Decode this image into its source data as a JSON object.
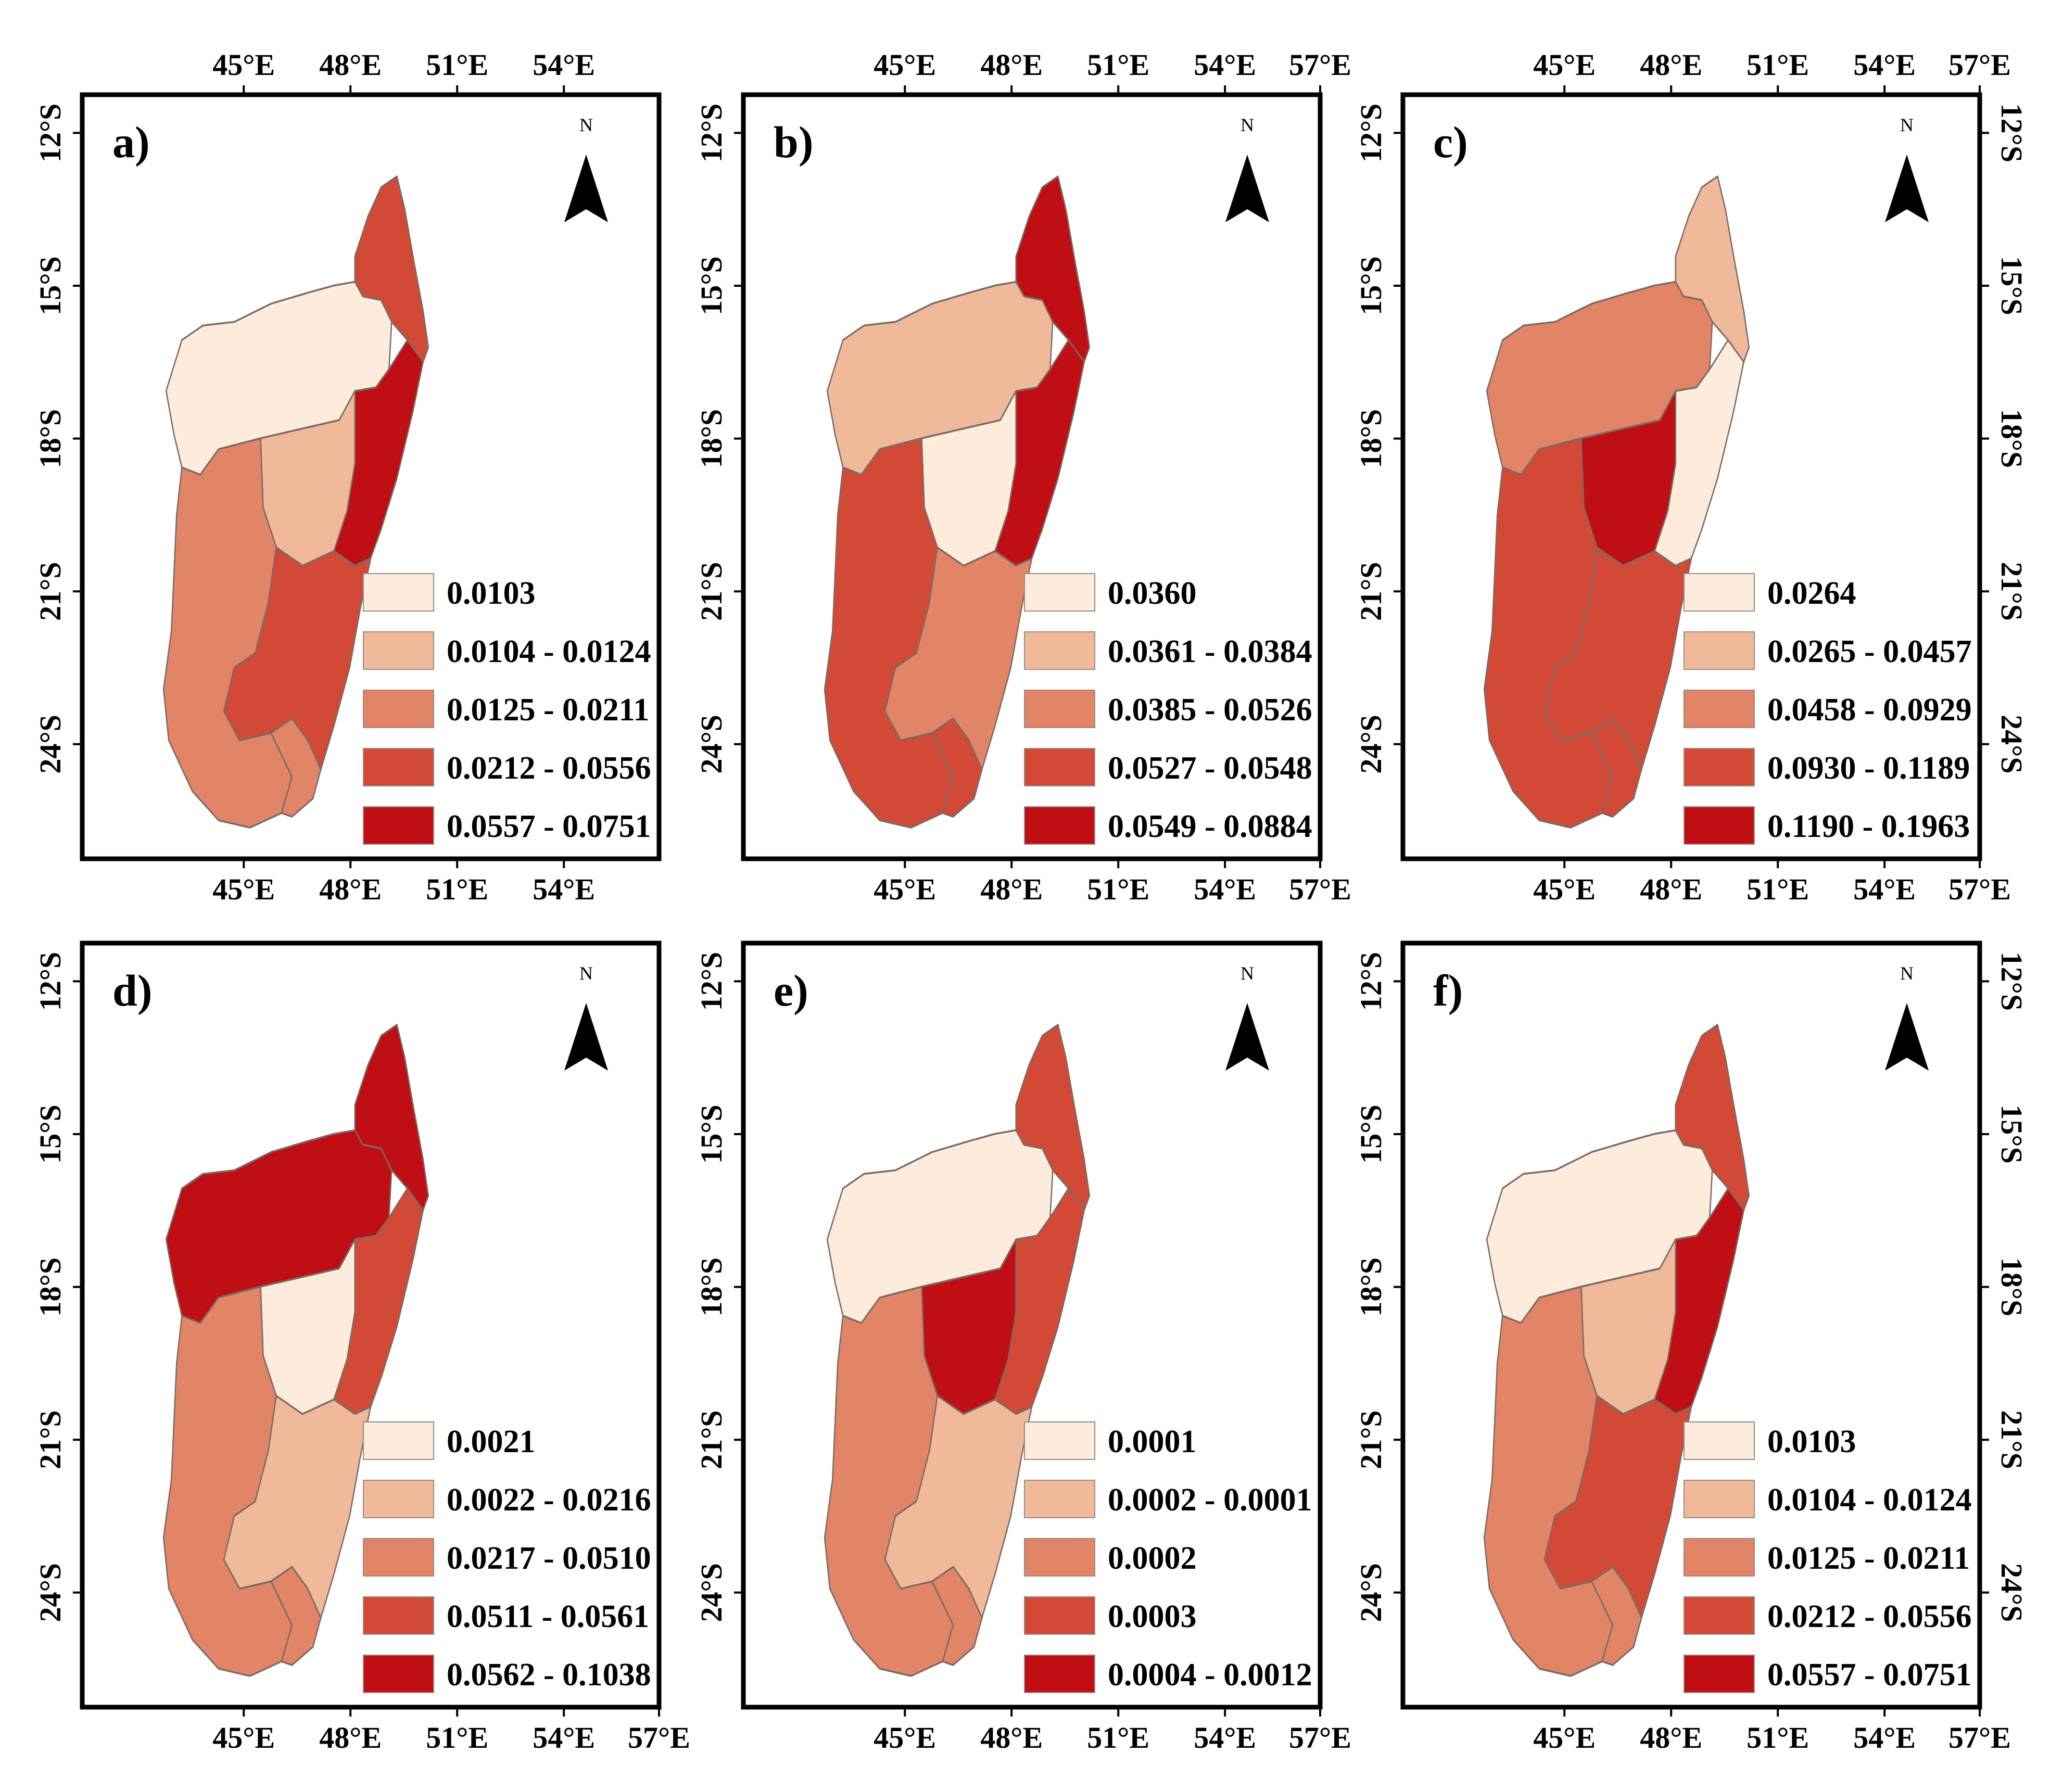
{
  "figure": {
    "panels": [
      {
        "label": "a)",
        "north_label": "N",
        "lon_ticks": [
          "45°E",
          "48°E",
          "51°E",
          "54°E"
        ],
        "lat_ticks": [
          "12°S",
          "15°S",
          "18°S",
          "21°S",
          "24°S"
        ],
        "legend": [
          {
            "label": "0.0103",
            "color": "#fdebdc"
          },
          {
            "label": "0.0104 - 0.0124",
            "color": "#f0b99a"
          },
          {
            "label": "0.0125 - 0.0211",
            "color": "#e28466"
          },
          {
            "label": "0.0212 - 0.0556",
            "color": "#d24a36"
          },
          {
            "label": "0.0557 - 0.0751",
            "color": "#c00f14"
          }
        ],
        "regions": {
          "north": 3,
          "northwest": 0,
          "central": 1,
          "east": 4,
          "west": 2,
          "southeast": 3,
          "south": 2
        }
      },
      {
        "label": "b)",
        "north_label": "N",
        "lon_ticks": [
          "45°E",
          "48°E",
          "51°E",
          "54°E",
          "57°E"
        ],
        "lat_ticks": [
          "12°S",
          "15°S",
          "18°S",
          "21°S",
          "24°S"
        ],
        "legend": [
          {
            "label": "0.0360",
            "color": "#fdebdc"
          },
          {
            "label": "0.0361 - 0.0384",
            "color": "#f0b99a"
          },
          {
            "label": "0.0385 - 0.0526",
            "color": "#e28466"
          },
          {
            "label": "0.0527 - 0.0548",
            "color": "#d24a36"
          },
          {
            "label": "0.0549 - 0.0884",
            "color": "#c00f14"
          }
        ],
        "regions": {
          "north": 4,
          "northwest": 1,
          "central": 0,
          "east": 4,
          "west": 3,
          "southeast": 2,
          "south": 3
        }
      },
      {
        "label": "c)",
        "north_label": "N",
        "lon_ticks": [
          "45°E",
          "48°E",
          "51°E",
          "54°E",
          "57°E"
        ],
        "lat_ticks": [
          "12°S",
          "15°S",
          "18°S",
          "21°S",
          "24°S"
        ],
        "legend": [
          {
            "label": "0.0264",
            "color": "#fdebdc"
          },
          {
            "label": "0.0265 - 0.0457",
            "color": "#f0b99a"
          },
          {
            "label": "0.0458 - 0.0929",
            "color": "#e28466"
          },
          {
            "label": "0.0930 - 0.1189",
            "color": "#d24a36"
          },
          {
            "label": "0.1190 - 0.1963",
            "color": "#c00f14"
          }
        ],
        "regions": {
          "north": 1,
          "northwest": 2,
          "central": 4,
          "east": 0,
          "west": 3,
          "southeast": 3,
          "south": 3
        }
      },
      {
        "label": "d)",
        "north_label": "N",
        "lon_ticks": [
          "45°E",
          "48°E",
          "51°E",
          "54°E",
          "57°E"
        ],
        "lat_ticks": [
          "12°S",
          "15°S",
          "18°S",
          "21°S",
          "24°S"
        ],
        "legend": [
          {
            "label": "0.0021",
            "color": "#fdebdc"
          },
          {
            "label": "0.0022 - 0.0216",
            "color": "#f0b99a"
          },
          {
            "label": "0.0217 - 0.0510",
            "color": "#e28466"
          },
          {
            "label": "0.0511 - 0.0561",
            "color": "#d24a36"
          },
          {
            "label": "0.0562 - 0.1038",
            "color": "#c00f14"
          }
        ],
        "regions": {
          "north": 4,
          "northwest": 4,
          "central": 0,
          "east": 3,
          "west": 2,
          "southeast": 1,
          "south": 2
        }
      },
      {
        "label": "e)",
        "north_label": "N",
        "lon_ticks": [
          "45°E",
          "48°E",
          "51°E",
          "54°E",
          "57°E"
        ],
        "lat_ticks": [
          "12°S",
          "15°S",
          "18°S",
          "21°S",
          "24°S"
        ],
        "legend": [
          {
            "label": "0.0001",
            "color": "#fdebdc"
          },
          {
            "label": "0.0002 - 0.0001",
            "color": "#f0b99a"
          },
          {
            "label": "0.0002",
            "color": "#e28466"
          },
          {
            "label": "0.0003",
            "color": "#d24a36"
          },
          {
            "label": "0.0004 - 0.0012",
            "color": "#c00f14"
          }
        ],
        "regions": {
          "north": 3,
          "northwest": 0,
          "central": 4,
          "east": 3,
          "west": 2,
          "southeast": 1,
          "south": 2
        }
      },
      {
        "label": "f)",
        "north_label": "N",
        "lon_ticks": [
          "45°E",
          "48°E",
          "51°E",
          "54°E",
          "57°E"
        ],
        "lat_ticks": [
          "12°S",
          "15°S",
          "18°S",
          "21°S",
          "24°S"
        ],
        "legend": [
          {
            "label": "0.0103",
            "color": "#fdebdc"
          },
          {
            "label": "0.0104 - 0.0124",
            "color": "#f0b99a"
          },
          {
            "label": "0.0125 - 0.0211",
            "color": "#e28466"
          },
          {
            "label": "0.0212 - 0.0556",
            "color": "#d24a36"
          },
          {
            "label": "0.0557 - 0.0751",
            "color": "#c00f14"
          }
        ],
        "regions": {
          "north": 3,
          "northwest": 0,
          "central": 1,
          "east": 4,
          "west": 2,
          "southeast": 3,
          "south": 2
        }
      }
    ]
  }
}
